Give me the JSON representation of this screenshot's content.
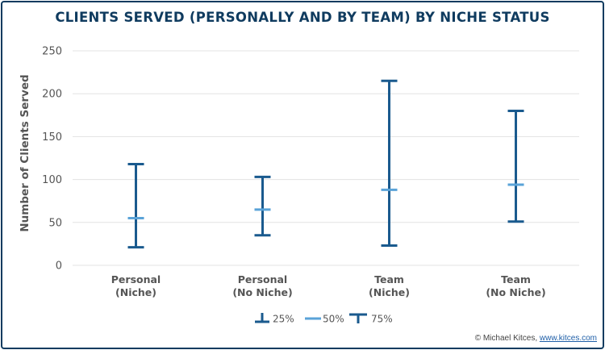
{
  "title": "CLIENTS SERVED (PERSONALLY AND BY TEAM) BY NICHE STATUS",
  "credit_prefix": "© Michael Kitces, ",
  "credit_link": "www.kitces.com",
  "colors": {
    "dark": "#1a5a8e",
    "light": "#5aa3d8",
    "frame": "#0f3b5f",
    "grid": "#e3e3e3"
  },
  "chart_data": {
    "type": "range",
    "ylabel": "Number of Clients Served",
    "ylim": [
      0,
      250
    ],
    "yticks": [
      0,
      50,
      100,
      150,
      200,
      250
    ],
    "categories": [
      {
        "line1": "Personal",
        "line2": "(Niche)"
      },
      {
        "line1": "Personal",
        "line2": "(No Niche)"
      },
      {
        "line1": "Team",
        "line2": "(Niche)"
      },
      {
        "line1": "Team",
        "line2": "(No Niche)"
      }
    ],
    "series": [
      {
        "name": "25%",
        "values": [
          21,
          35,
          23,
          51
        ]
      },
      {
        "name": "50%",
        "values": [
          55,
          65,
          88,
          94
        ]
      },
      {
        "name": "75%",
        "values": [
          118,
          103,
          215,
          180
        ]
      }
    ],
    "grid": true,
    "legend_position": "bottom-center"
  }
}
